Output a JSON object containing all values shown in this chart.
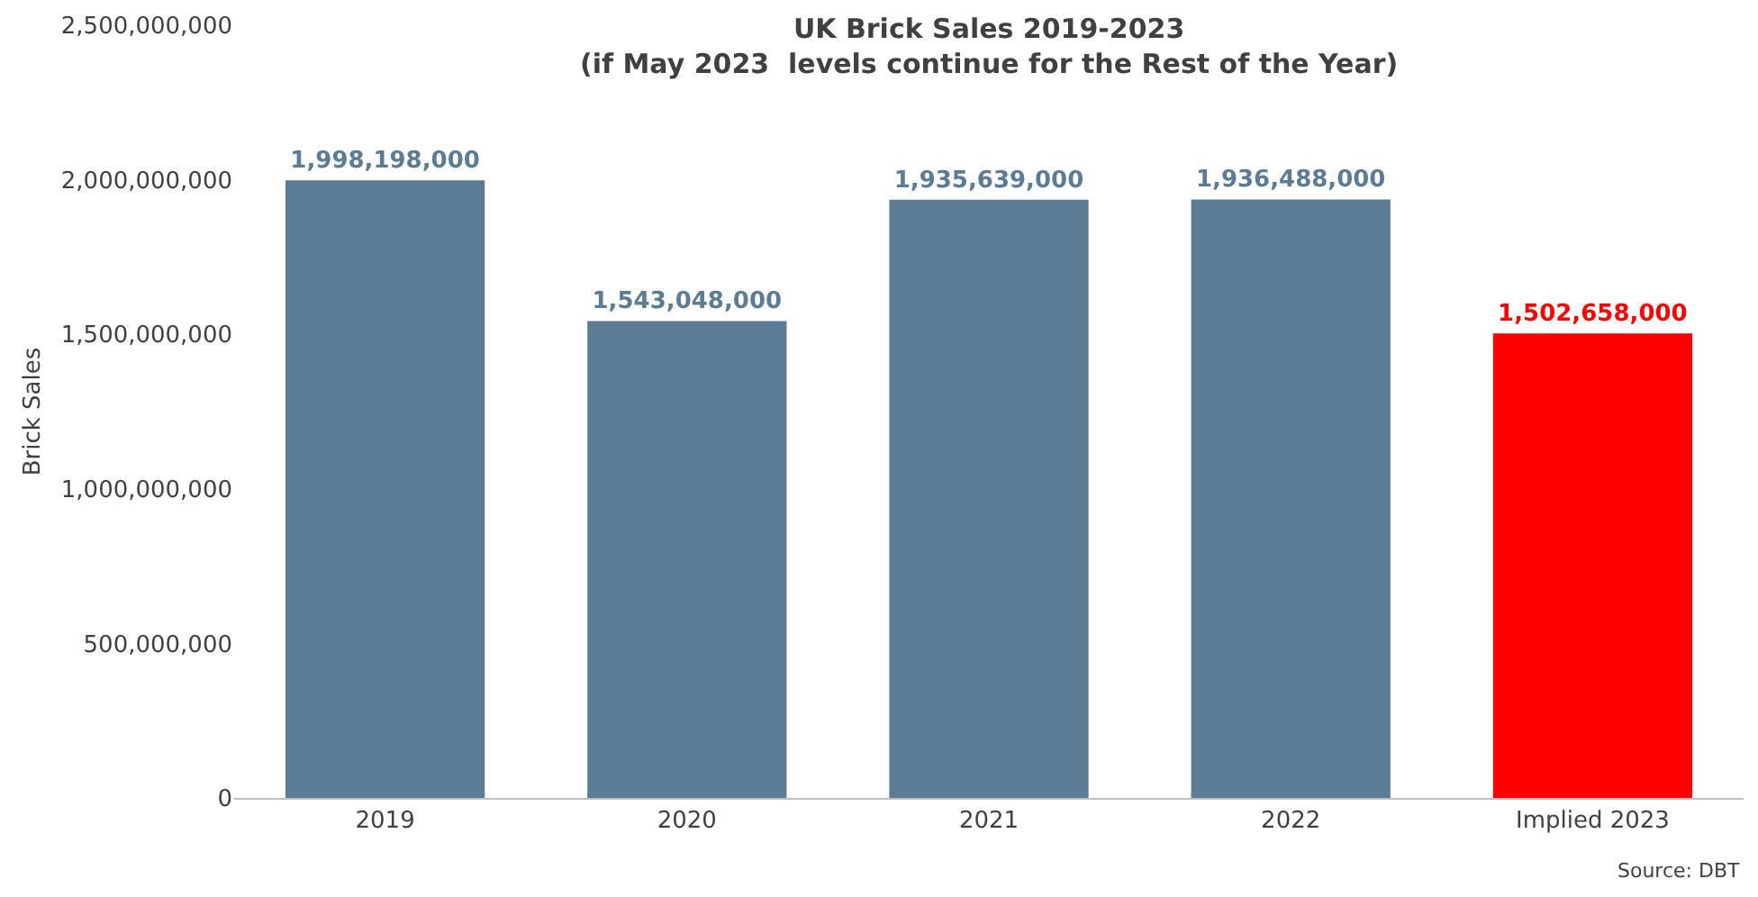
{
  "chart_data": {
    "type": "bar",
    "title": "UK Brick Sales 2019-2023\n(if May 2023  levels continue for the Rest of the Year)",
    "ylabel": "Brick Sales",
    "categories": [
      "2019",
      "2020",
      "2021",
      "2022",
      "Implied 2023"
    ],
    "values": [
      1998198000,
      1543048000,
      1935639000,
      1936488000,
      1502658000
    ],
    "colors": [
      "#5b7c94",
      "#5b7c94",
      "#5b7c94",
      "#5b7c94",
      "#ff0000"
    ],
    "value_labels": [
      "1,998,198,000",
      "1,543,048,000",
      "1,935,639,000",
      "1,936,488,000",
      "1,502,658,000"
    ],
    "ylim": [
      0,
      2500000000
    ],
    "yticks": [
      {
        "value": 0,
        "label": "0"
      },
      {
        "value": 500000000,
        "label": "500,000,000"
      },
      {
        "value": 1000000000,
        "label": "1,000,000,000"
      },
      {
        "value": 1500000000,
        "label": "1,500,000,000"
      },
      {
        "value": 2000000000,
        "label": "2,000,000,000"
      },
      {
        "value": 2500000000,
        "label": "2,500,000,000"
      }
    ],
    "annotations": [
      "Source: DBT"
    ]
  }
}
